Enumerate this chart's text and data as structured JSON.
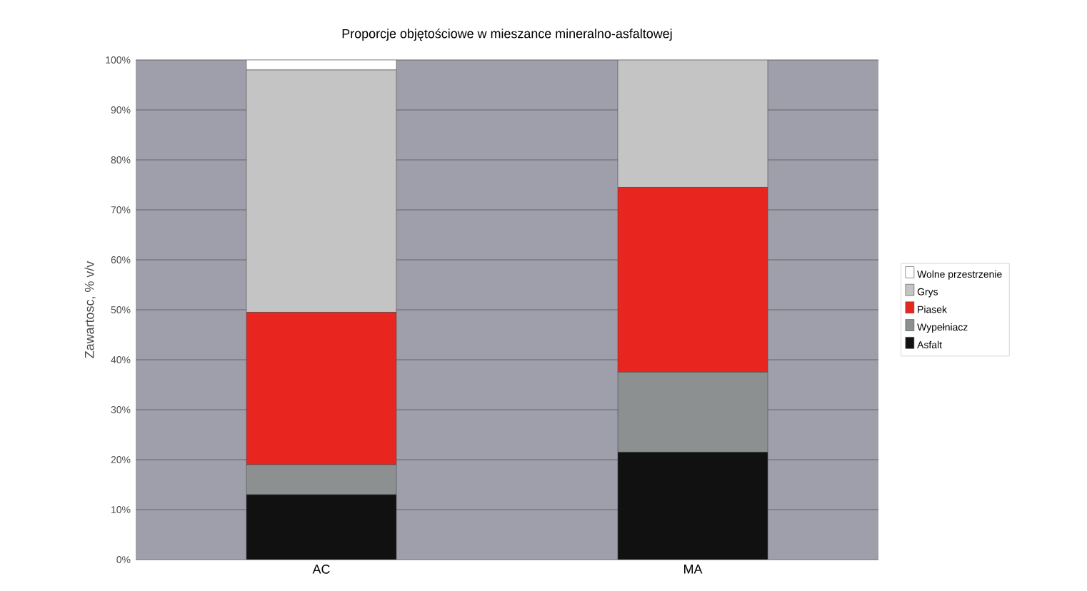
{
  "chart_data": {
    "type": "bar",
    "stacked": true,
    "title": "Proporcje objętościowe w mieszance mineralno-asfaltowej",
    "ylabel": "Zawartosc, % v/v",
    "categories": [
      "AC",
      "MA"
    ],
    "series": [
      {
        "name": "Asfalt",
        "color": "#111111",
        "values": [
          13,
          21.5
        ]
      },
      {
        "name": "Wypełniacz",
        "color": "#8c9090",
        "values": [
          6,
          16
        ]
      },
      {
        "name": "Piasek",
        "color": "#e8251e",
        "values": [
          30.5,
          37
        ]
      },
      {
        "name": "Grys",
        "color": "#c4c4c4",
        "values": [
          48.5,
          25.5
        ]
      },
      {
        "name": "Wolne przestrzenie",
        "color": "#ffffff",
        "values": [
          2,
          0
        ]
      }
    ],
    "ylim": [
      0,
      100
    ],
    "yticks": [
      {
        "value": 0,
        "label": "0%"
      },
      {
        "value": 10,
        "label": "10%"
      },
      {
        "value": 20,
        "label": "20%"
      },
      {
        "value": 30,
        "label": "30%"
      },
      {
        "value": 40,
        "label": "40%"
      },
      {
        "value": 50,
        "label": "50%"
      },
      {
        "value": 60,
        "label": "60%"
      },
      {
        "value": 70,
        "label": "70%"
      },
      {
        "value": 80,
        "label": "80%"
      },
      {
        "value": 90,
        "label": "90%"
      },
      {
        "value": 100,
        "label": "100%"
      }
    ],
    "grid": "y",
    "legend": "right"
  }
}
